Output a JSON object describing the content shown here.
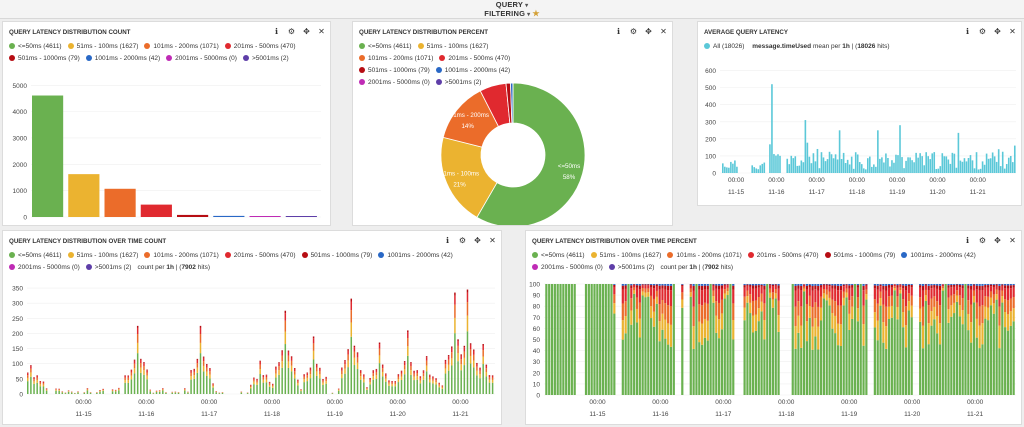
{
  "header": {
    "query_label": "QUERY",
    "filtering_label": "FILTERING"
  },
  "icons": {
    "info": "info-icon",
    "gear": "gear-icon",
    "move": "move-icon",
    "close": "close-icon"
  },
  "colors": [
    "#6ab150",
    "#ebb330",
    "#eb6c2a",
    "#e0292f",
    "#b60d13",
    "#2968c6",
    "#bf2bb5",
    "#5e3ea8"
  ],
  "legend": [
    {
      "label": "<=50ms (4611)"
    },
    {
      "label": "51ms - 100ms (1627)"
    },
    {
      "label": "101ms - 200ms (1071)"
    },
    {
      "label": "201ms - 500ms (470)"
    },
    {
      "label": "501ms - 1000ms (79)"
    },
    {
      "label": "1001ms - 2000ms (42)"
    },
    {
      "label": "2001ms - 5000ms (0)"
    },
    {
      "label": ">5001ms (2)"
    }
  ],
  "panels": {
    "count": {
      "title": "QUERY LATENCY DISTRIBUTION COUNT"
    },
    "percent": {
      "title": "QUERY LATENCY DISTRIBUTION PERCENT"
    },
    "avg": {
      "title": "AVERAGE QUERY LATENCY",
      "legend_all": "All (18026)",
      "field": "message.timeUsed",
      "mean_per": "mean per",
      "interval": "1h",
      "hits_open": "| (",
      "hits": "18026",
      "hits_close": "hits)"
    },
    "ot_count": {
      "title": "QUERY LATENCY DISTRIBUTION OVER TIME COUNT",
      "per_label": "count per",
      "interval": "1h",
      "hits_open": "| (",
      "hits": "7902",
      "hits_close": "hits)"
    },
    "ot_percent": {
      "title": "QUERY LATENCY DISTRIBUTION OVER TIME PERCENT",
      "per_label": "count per",
      "interval": "1h",
      "hits_open": "| (",
      "hits": "7902",
      "hits_close": "hits)"
    }
  },
  "chart_data": [
    {
      "type": "bar",
      "title": "QUERY LATENCY DISTRIBUTION COUNT",
      "categories": [
        "<=50ms",
        "51ms - 100ms",
        "101ms - 200ms",
        "201ms - 500ms",
        "501ms - 1000ms",
        "1001ms - 2000ms",
        "2001ms - 5000ms",
        ">5001ms"
      ],
      "values": [
        4611,
        1627,
        1071,
        470,
        79,
        42,
        0,
        2
      ],
      "yticks": [
        0,
        1000,
        2000,
        3000,
        4000,
        5000
      ],
      "ylim": [
        0,
        5200
      ]
    },
    {
      "type": "pie",
      "title": "QUERY LATENCY DISTRIBUTION PERCENT",
      "labels": [
        "<=50ms",
        "51ms - 100ms",
        "101ms - 200ms",
        "201ms - 500ms",
        "501ms - 1000ms",
        "1001ms - 2000ms",
        "2001ms - 5000ms",
        ">5001ms"
      ],
      "values": [
        4611,
        1627,
        1071,
        470,
        79,
        42,
        0,
        2
      ],
      "slice_labels": [
        {
          "name": "<=50ms",
          "pct": "58%"
        },
        {
          "name": "51ms - 100ms",
          "pct": "21%"
        },
        {
          "name": "101ms - 200ms",
          "pct": "14%"
        }
      ]
    },
    {
      "type": "bar",
      "title": "AVERAGE QUERY LATENCY",
      "series_name": "All",
      "yticks": [
        0,
        100,
        200,
        300,
        400,
        500,
        600
      ],
      "ylim": [
        0,
        650
      ],
      "xticks": [
        {
          "pos": 0.4,
          "time": "00:00",
          "date": "11-15"
        },
        {
          "pos": 1.4,
          "time": "00:00",
          "date": "11-16"
        },
        {
          "pos": 2.4,
          "time": "00:00",
          "date": "11-17"
        },
        {
          "pos": 3.4,
          "time": "00:00",
          "date": "11-18"
        },
        {
          "pos": 4.4,
          "time": "00:00",
          "date": "11-19"
        },
        {
          "pos": 5.4,
          "time": "00:00",
          "date": "11-20"
        },
        {
          "pos": 6.4,
          "time": "00:00",
          "date": "11-21"
        }
      ],
      "segments": [
        [
          0.05,
          0.42
        ],
        [
          0.78,
          1.1
        ],
        [
          1.22,
          1.5
        ],
        [
          1.65,
          7.3
        ]
      ],
      "peaks": [
        {
          "t": 1.27,
          "v": 520
        },
        {
          "t": 2.12,
          "v": 310
        },
        {
          "t": 2.95,
          "v": 250
        },
        {
          "t": 3.9,
          "v": 250
        },
        {
          "t": 4.45,
          "v": 280
        },
        {
          "t": 5.9,
          "v": 235
        }
      ],
      "typical_range": [
        20,
        160
      ]
    },
    {
      "type": "bar",
      "title": "QUERY LATENCY DISTRIBUTION OVER TIME COUNT",
      "stacked": true,
      "yticks": [
        0,
        50,
        100,
        150,
        200,
        250,
        300,
        350
      ],
      "ylim": [
        0,
        360
      ],
      "xticks": [
        {
          "pos": 1.0,
          "time": "00:00",
          "date": "11-15"
        },
        {
          "pos": 2.0,
          "time": "00:00",
          "date": "11-16"
        },
        {
          "pos": 3.0,
          "time": "00:00",
          "date": "11-17"
        },
        {
          "pos": 4.0,
          "time": "00:00",
          "date": "11-18"
        },
        {
          "pos": 5.0,
          "time": "00:00",
          "date": "11-19"
        },
        {
          "pos": 6.0,
          "time": "00:00",
          "date": "11-20"
        },
        {
          "pos": 7.0,
          "time": "00:00",
          "date": "11-21"
        }
      ],
      "spikes": [
        {
          "t": 0.1,
          "v": 95
        },
        {
          "t": 1.8,
          "v": 225
        },
        {
          "t": 2.8,
          "v": 225
        },
        {
          "t": 3.75,
          "v": 110
        },
        {
          "t": 4.15,
          "v": 275
        },
        {
          "t": 4.6,
          "v": 190
        },
        {
          "t": 5.2,
          "v": 315
        },
        {
          "t": 5.65,
          "v": 170
        },
        {
          "t": 6.1,
          "v": 210
        },
        {
          "t": 6.4,
          "v": 125
        },
        {
          "t": 6.85,
          "v": 335
        },
        {
          "t": 7.05,
          "v": 345
        },
        {
          "t": 7.3,
          "v": 165
        }
      ]
    },
    {
      "type": "bar",
      "title": "QUERY LATENCY DISTRIBUTION OVER TIME PERCENT",
      "stacked": true,
      "yticks": [
        0,
        10,
        20,
        30,
        40,
        50,
        60,
        70,
        80,
        90,
        100
      ],
      "ylim": [
        0,
        100
      ],
      "xticks": [
        {
          "pos": 1.2,
          "time": "00:00",
          "date": "11-15"
        },
        {
          "pos": 2.2,
          "time": "00:00",
          "date": "11-16"
        },
        {
          "pos": 3.2,
          "time": "00:00",
          "date": "11-17"
        },
        {
          "pos": 4.2,
          "time": "00:00",
          "date": "11-18"
        },
        {
          "pos": 5.2,
          "time": "00:00",
          "date": "11-19"
        },
        {
          "pos": 6.2,
          "time": "00:00",
          "date": "11-20"
        },
        {
          "pos": 7.2,
          "time": "00:00",
          "date": "11-21"
        }
      ]
    }
  ]
}
